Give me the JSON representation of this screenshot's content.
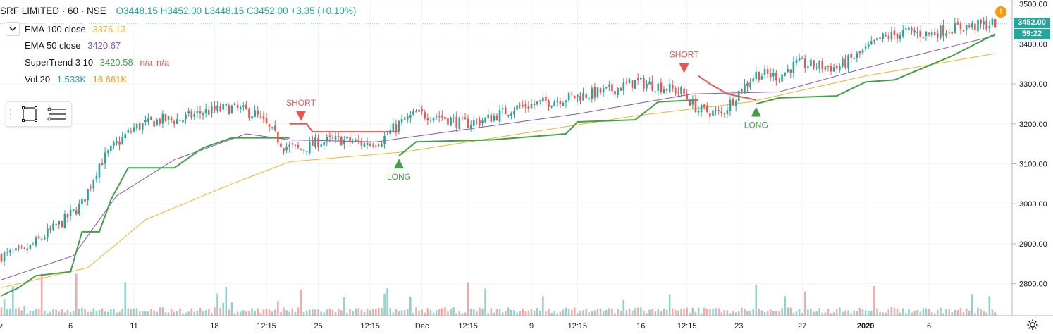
{
  "symbol": {
    "name": "SRF LIMITED · 60 · NSE",
    "open": "O3448.15",
    "high": "H3452.00",
    "low": "L3448.15",
    "close": "C3452.00",
    "change": "+3.35 (+0.10%)"
  },
  "indicators": [
    {
      "label": "EMA 100 close",
      "value": "3376.13",
      "color": "#f0b429"
    },
    {
      "label": "EMA 50 close",
      "value": "3420.67",
      "color": "#7e57c2"
    },
    {
      "label": "SuperTrend 3 10",
      "value": "3420.58",
      "extra1": "n/a",
      "extra2": "n/a",
      "color": "#43a047",
      "color2": "#ef5350"
    },
    {
      "label": "Vol 20",
      "value": "1.533K",
      "extra1": "16.661K",
      "color": "#26a69a",
      "color2": "#ff9800"
    }
  ],
  "price_axis": {
    "labels": [
      "3500.00",
      "3400.00",
      "3300.00",
      "3200.00",
      "3100.00",
      "3000.00",
      "2900.00",
      "2800.00"
    ],
    "last_price": "3452.00",
    "countdown": "59:22"
  },
  "time_axis": {
    "labels": [
      "Nov",
      "6",
      "11",
      "18",
      "12:15",
      "25",
      "12:15",
      "Dec",
      "12:15",
      "9",
      "12:15",
      "16",
      "12:15",
      "23",
      "27",
      "2020",
      "6"
    ]
  },
  "signals": [
    {
      "type": "SHORT",
      "text": "SHORT",
      "color": "#ef5350"
    },
    {
      "type": "LONG",
      "text": "LONG",
      "color": "#43a047"
    },
    {
      "type": "SHORT",
      "text": "SHORT",
      "color": "#ef5350"
    },
    {
      "type": "LONG",
      "text": "LONG",
      "color": "#43a047"
    }
  ],
  "alert_icon": "!",
  "icons": {
    "collapse": "chevron-down-icon",
    "rectangle": "rectangle-tool-icon",
    "lines": "horizontal-lines-tool-icon",
    "settings": "gear-icon"
  },
  "chart_data": {
    "type": "candlestick",
    "ylim": [
      2720,
      3510
    ],
    "anchors": [
      [
        0,
        2870
      ],
      [
        8,
        2880
      ],
      [
        15,
        2920
      ],
      [
        22,
        2960
      ],
      [
        28,
        3000
      ],
      [
        34,
        3100
      ],
      [
        40,
        3150
      ],
      [
        46,
        3190
      ],
      [
        55,
        3210
      ],
      [
        62,
        3210
      ],
      [
        70,
        3230
      ],
      [
        80,
        3240
      ],
      [
        88,
        3225
      ],
      [
        92,
        3195
      ],
      [
        98,
        3145
      ],
      [
        104,
        3135
      ],
      [
        110,
        3155
      ],
      [
        118,
        3160
      ],
      [
        126,
        3150
      ],
      [
        132,
        3160
      ],
      [
        138,
        3200
      ],
      [
        144,
        3225
      ],
      [
        152,
        3220
      ],
      [
        160,
        3200
      ],
      [
        168,
        3210
      ],
      [
        178,
        3240
      ],
      [
        186,
        3250
      ],
      [
        196,
        3265
      ],
      [
        205,
        3275
      ],
      [
        212,
        3285
      ],
      [
        220,
        3305
      ],
      [
        228,
        3295
      ],
      [
        236,
        3280
      ],
      [
        242,
        3235
      ],
      [
        250,
        3225
      ],
      [
        256,
        3280
      ],
      [
        262,
        3325
      ],
      [
        270,
        3320
      ],
      [
        276,
        3350
      ],
      [
        284,
        3345
      ],
      [
        290,
        3340
      ],
      [
        298,
        3375
      ],
      [
        306,
        3415
      ],
      [
        314,
        3430
      ],
      [
        322,
        3425
      ],
      [
        330,
        3440
      ],
      [
        338,
        3445
      ],
      [
        345,
        3452
      ]
    ],
    "candle_count": 346,
    "ema100_anchors": [
      [
        0,
        2790
      ],
      [
        30,
        2840
      ],
      [
        50,
        2960
      ],
      [
        80,
        3050
      ],
      [
        100,
        3105
      ],
      [
        140,
        3130
      ],
      [
        180,
        3175
      ],
      [
        220,
        3220
      ],
      [
        260,
        3255
      ],
      [
        300,
        3320
      ],
      [
        345,
        3376
      ]
    ],
    "ema50_anchors": [
      [
        0,
        2810
      ],
      [
        25,
        2870
      ],
      [
        40,
        3020
      ],
      [
        60,
        3110
      ],
      [
        85,
        3175
      ],
      [
        100,
        3160
      ],
      [
        130,
        3155
      ],
      [
        160,
        3185
      ],
      [
        200,
        3225
      ],
      [
        240,
        3275
      ],
      [
        270,
        3280
      ],
      [
        300,
        3340
      ],
      [
        345,
        3421
      ]
    ],
    "supertrend_segments": [
      {
        "trend": "up",
        "points": [
          [
            0,
            2770
          ],
          [
            6,
            2790
          ],
          [
            12,
            2820
          ],
          [
            24,
            2830
          ],
          [
            28,
            2930
          ],
          [
            34,
            2930
          ],
          [
            38,
            3010
          ],
          [
            44,
            3090
          ],
          [
            60,
            3090
          ],
          [
            70,
            3140
          ],
          [
            80,
            3165
          ],
          [
            100,
            3165
          ]
        ]
      },
      {
        "trend": "down",
        "points": [
          [
            100,
            3200
          ],
          [
            106,
            3200
          ],
          [
            108,
            3180
          ],
          [
            138,
            3180
          ]
        ]
      },
      {
        "trend": "up",
        "points": [
          [
            138,
            3120
          ],
          [
            144,
            3155
          ],
          [
            170,
            3160
          ],
          [
            196,
            3175
          ],
          [
            200,
            3205
          ],
          [
            220,
            3210
          ],
          [
            228,
            3255
          ],
          [
            242,
            3260
          ]
        ]
      },
      {
        "trend": "down",
        "points": [
          [
            242,
            3320
          ],
          [
            246,
            3300
          ],
          [
            252,
            3275
          ],
          [
            262,
            3260
          ]
        ]
      },
      {
        "trend": "up",
        "points": [
          [
            262,
            3250
          ],
          [
            270,
            3265
          ],
          [
            290,
            3270
          ],
          [
            300,
            3305
          ],
          [
            310,
            3310
          ],
          [
            330,
            3370
          ],
          [
            345,
            3425
          ]
        ]
      }
    ],
    "volume_ylim": [
      0,
      80
    ],
    "signal_bars": [
      104,
      138,
      237,
      262
    ]
  }
}
